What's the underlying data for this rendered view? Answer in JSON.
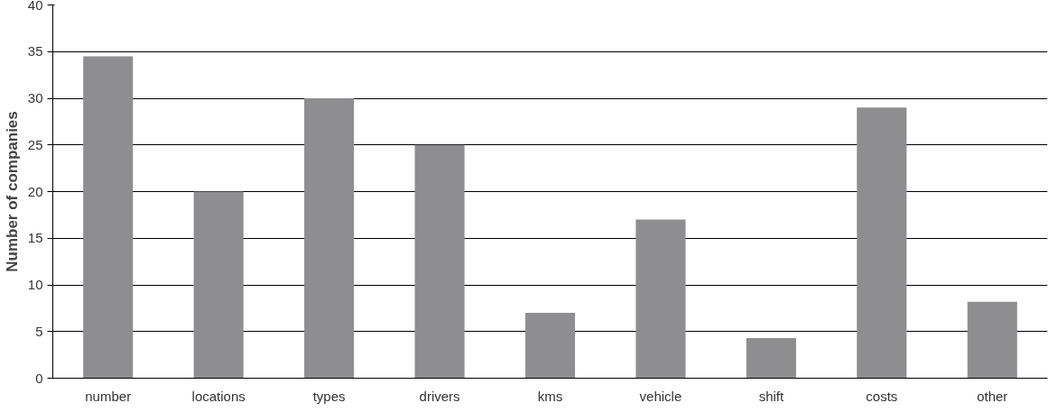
{
  "chart_data": {
    "type": "bar",
    "ylabel": "Number of companies",
    "categories": [
      "number",
      "locations",
      "types",
      "drivers",
      "kms",
      "vehicle",
      "shift",
      "costs",
      "other"
    ],
    "values": [
      34.5,
      20,
      30,
      25,
      7,
      17,
      4.3,
      29,
      8.2
    ],
    "color": "#8e8e90",
    "ylim": [
      0,
      40
    ],
    "yticks": [
      0,
      5,
      10,
      15,
      20,
      25,
      30,
      35,
      40
    ],
    "grid": "y"
  }
}
